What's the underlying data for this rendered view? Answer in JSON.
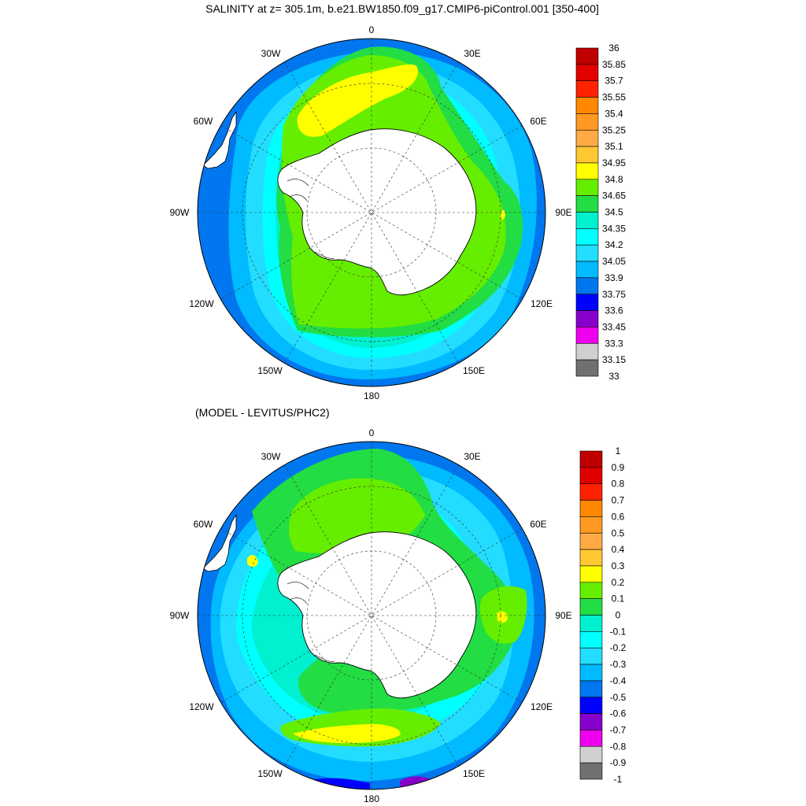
{
  "title": "SALINITY at z= 305.1m, b.e21.BW1850.f09_g17.CMIP6-piControl.001 [350-400]",
  "panel2_title": "(MODEL - LEVITUS/PHC2)",
  "longitude_labels": [
    "0",
    "30E",
    "60E",
    "90E",
    "120E",
    "150E",
    "180",
    "150W",
    "120W",
    "90W",
    "60W",
    "30W"
  ],
  "panel1": {
    "colorbar_labels": [
      "36",
      "35.85",
      "35.7",
      "35.55",
      "35.4",
      "35.25",
      "35.1",
      "34.95",
      "34.8",
      "34.65",
      "34.5",
      "34.35",
      "34.2",
      "34.05",
      "33.9",
      "33.75",
      "33.6",
      "33.45",
      "33.3",
      "33.15",
      "33"
    ],
    "colors": [
      "#c00000",
      "#e00000",
      "#ff2200",
      "#ff8800",
      "#ff9922",
      "#ffaa44",
      "#ffc833",
      "#ffff00",
      "#66ee00",
      "#22dd44",
      "#00f0d0",
      "#00ffff",
      "#22ddff",
      "#00bbff",
      "#0077ee",
      "#0000ff",
      "#8800cc",
      "#ee00ee",
      "#d0d0d0",
      "#707070"
    ]
  },
  "panel2": {
    "colorbar_labels": [
      "1",
      "0.9",
      "0.8",
      "0.7",
      "0.6",
      "0.5",
      "0.4",
      "0.3",
      "0.2",
      "0.1",
      "0",
      "-0.1",
      "-0.2",
      "-0.3",
      "-0.4",
      "-0.5",
      "-0.6",
      "-0.7",
      "-0.8",
      "-0.9",
      "-1"
    ],
    "colors": [
      "#c00000",
      "#e00000",
      "#ff2200",
      "#ff8800",
      "#ff9922",
      "#ffaa44",
      "#ffc833",
      "#ffff00",
      "#66ee00",
      "#22dd44",
      "#00f0d0",
      "#00ffff",
      "#22ddff",
      "#00bbff",
      "#0077ee",
      "#0000ff",
      "#8800cc",
      "#ee00ee",
      "#d0d0d0",
      "#707070"
    ]
  },
  "land_color": "#ffffff"
}
